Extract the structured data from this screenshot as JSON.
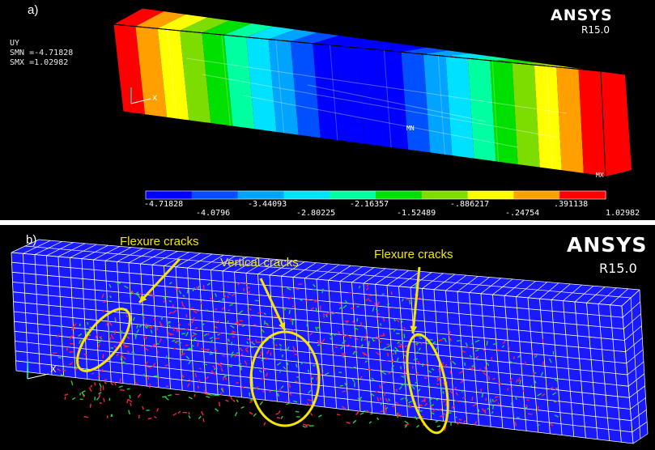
{
  "panel_a": {
    "label": "a)",
    "brand": "ANSYS",
    "version": "R15.0",
    "result_label": "UY",
    "smn": "SMN =-4.71828",
    "smx": "SMX =1.02982",
    "min_marker": "MN",
    "max_marker": "MX",
    "legend_top": [
      "-4.71828",
      "-3.44093",
      "-2.16357",
      "-.886217",
      ".391138"
    ],
    "legend_bottom": [
      "-4.0796",
      "-2.80225",
      "-1.52489",
      "-.24754",
      "1.02982"
    ],
    "colors": [
      "#0000ff",
      "#0050ff",
      "#00a4ff",
      "#00e0ff",
      "#00ffa0",
      "#00e000",
      "#7ddc00",
      "#ffff00",
      "#ffa000",
      "#ff0000"
    ]
  },
  "panel_b": {
    "label": "b)",
    "brand": "ANSYS",
    "version": "R15.0",
    "annotations": [
      "Flexure cracks",
      "Vertical cracks",
      "Flexure cracks"
    ],
    "mesh_color": "#ffffff",
    "beam_color": "#1a1aff",
    "annotation_color": "#f5e600"
  }
}
